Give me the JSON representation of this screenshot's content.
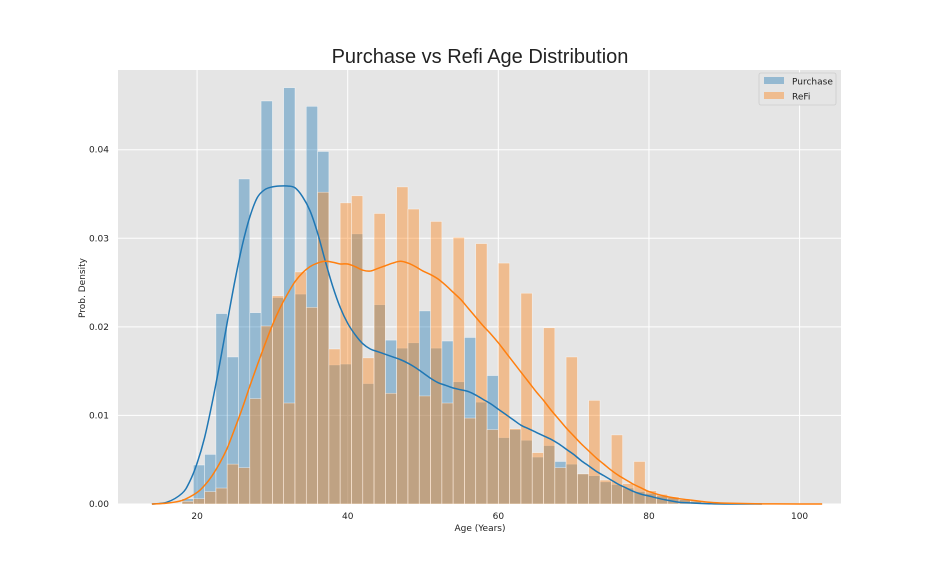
{
  "chart_data": {
    "type": "bar",
    "title": "Purchase vs Refi Age Distribution",
    "xlabel": "Age (Years)",
    "ylabel": "Prob. Density",
    "xlim": [
      9.5,
      105.5
    ],
    "ylim": [
      0,
      0.049
    ],
    "xticks": [
      20,
      40,
      60,
      80,
      100
    ],
    "yticks": [
      0.0,
      0.01,
      0.02,
      0.03,
      0.04
    ],
    "ytick_labels": [
      "0.00",
      "0.01",
      "0.02",
      "0.03",
      "0.04"
    ],
    "grid": true,
    "legend_position": "top-right",
    "bin_edges": [
      18,
      19.5,
      21,
      22.5,
      24,
      25.5,
      27,
      28.5,
      30,
      31.5,
      33,
      34.5,
      36,
      37.5,
      39,
      40.5,
      42,
      43.5,
      45,
      46.5,
      48,
      49.5,
      51,
      52.5,
      54,
      55.5,
      57,
      58.5,
      60,
      61.5,
      63,
      64.5,
      66,
      67.5,
      69,
      70.5,
      72,
      73.5,
      75,
      76.5,
      78,
      79.5,
      81,
      82.5,
      84,
      85.5,
      87
    ],
    "series": [
      {
        "name": "Purchase",
        "color": "#1f77b4",
        "hist": [
          0.0006,
          0.0044,
          0.0056,
          0.0215,
          0.0166,
          0.0367,
          0.0216,
          0.0455,
          0.0233,
          0.047,
          0.0237,
          0.0449,
          0.0398,
          0.0157,
          0.0158,
          0.0305,
          0.0136,
          0.0225,
          0.0185,
          0.0176,
          0.0182,
          0.0218,
          0.0176,
          0.0184,
          0.0138,
          0.0188,
          0.0115,
          0.0145,
          0.0075,
          0.0084,
          0.0072,
          0.0053,
          0.0066,
          0.0048,
          0.0045,
          0.0034,
          0.0032,
          0.0025,
          0.0022,
          0.0018,
          0.0014,
          0.0012,
          0.0009,
          0.0007,
          0.0005,
          0.0004
        ],
        "kde_x": [
          14,
          16,
          18,
          19,
          20,
          21,
          22,
          23,
          24,
          25,
          26,
          27,
          28,
          29,
          30,
          31,
          32,
          33,
          34,
          35,
          36,
          37,
          38,
          39,
          40,
          41,
          42,
          43,
          44,
          45,
          46,
          47,
          48,
          49,
          50,
          51,
          52,
          53,
          54,
          55,
          56,
          57,
          58,
          59,
          60,
          61,
          62,
          63,
          64,
          65,
          66,
          67,
          68,
          69,
          70,
          71,
          72,
          73,
          74,
          75,
          76,
          77,
          78,
          79,
          80,
          82,
          84,
          86,
          88,
          90,
          95
        ],
        "kde_y": [
          0.0,
          0.0002,
          0.0012,
          0.0025,
          0.0046,
          0.0075,
          0.0114,
          0.0158,
          0.0205,
          0.0251,
          0.0292,
          0.0324,
          0.0346,
          0.0355,
          0.0358,
          0.0359,
          0.0359,
          0.0357,
          0.0347,
          0.0331,
          0.0306,
          0.0275,
          0.0246,
          0.0222,
          0.0204,
          0.0191,
          0.0181,
          0.0175,
          0.0172,
          0.0169,
          0.0166,
          0.0163,
          0.0159,
          0.0154,
          0.0148,
          0.0142,
          0.0137,
          0.0134,
          0.0131,
          0.0129,
          0.0127,
          0.0123,
          0.0118,
          0.0113,
          0.0107,
          0.0101,
          0.0095,
          0.0089,
          0.0085,
          0.0081,
          0.0077,
          0.0073,
          0.0068,
          0.0062,
          0.0056,
          0.0049,
          0.0043,
          0.0037,
          0.0032,
          0.0027,
          0.0022,
          0.0018,
          0.0014,
          0.0011,
          0.0009,
          0.0005,
          0.0002,
          0.0001,
          3e-05,
          0.0,
          0.0
        ]
      },
      {
        "name": "ReFi",
        "color": "#ff7f0e",
        "hist": [
          0.0003,
          0.0006,
          0.0014,
          0.0018,
          0.0045,
          0.0041,
          0.0119,
          0.0201,
          0.0235,
          0.0114,
          0.0262,
          0.0222,
          0.0352,
          0.0175,
          0.034,
          0.0348,
          0.0165,
          0.0328,
          0.0125,
          0.0358,
          0.0333,
          0.0122,
          0.0319,
          0.0114,
          0.0301,
          0.0097,
          0.0294,
          0.0084,
          0.0272,
          0.0085,
          0.0238,
          0.0058,
          0.0199,
          0.0041,
          0.0166,
          0.0034,
          0.0117,
          0.0027,
          0.0078,
          0.0023,
          0.0048,
          0.0015,
          0.0011,
          0.0008,
          0.0005,
          0.0003
        ],
        "kde_x": [
          14,
          16,
          18,
          20,
          21,
          22,
          23,
          24,
          25,
          26,
          27,
          28,
          29,
          30,
          31,
          32,
          33,
          34,
          35,
          36,
          37,
          38,
          39,
          40,
          41,
          42,
          43,
          44,
          45,
          46,
          47,
          48,
          49,
          50,
          51,
          52,
          53,
          54,
          55,
          56,
          57,
          58,
          59,
          60,
          61,
          62,
          63,
          64,
          65,
          66,
          67,
          68,
          69,
          70,
          71,
          72,
          73,
          74,
          75,
          76,
          77,
          78,
          79,
          80,
          82,
          84,
          86,
          88,
          90,
          95,
          100,
          103
        ],
        "kde_y": [
          0.0,
          0.0001,
          0.0004,
          0.0013,
          0.0021,
          0.0032,
          0.0046,
          0.0063,
          0.0085,
          0.0108,
          0.0133,
          0.0157,
          0.018,
          0.0202,
          0.0221,
          0.0237,
          0.0251,
          0.0261,
          0.0268,
          0.0272,
          0.0274,
          0.0273,
          0.0271,
          0.0271,
          0.0268,
          0.0264,
          0.0263,
          0.0266,
          0.0269,
          0.0272,
          0.0274,
          0.0272,
          0.0268,
          0.0263,
          0.0259,
          0.0254,
          0.0247,
          0.0239,
          0.0231,
          0.0221,
          0.0211,
          0.0201,
          0.0192,
          0.0182,
          0.0171,
          0.016,
          0.0149,
          0.0138,
          0.0127,
          0.0117,
          0.0106,
          0.0096,
          0.0086,
          0.0077,
          0.0068,
          0.006,
          0.0052,
          0.0045,
          0.0038,
          0.0032,
          0.0027,
          0.0022,
          0.0018,
          0.0014,
          0.0009,
          0.0006,
          0.0004,
          0.0002,
          0.0001,
          2e-05,
          0.0,
          0.0
        ]
      }
    ],
    "colors": {
      "plot_background": "#e5e5e5",
      "grid": "#ffffff",
      "purchase_fill": "rgba(31,119,180,0.4)",
      "refi_fill": "rgba(255,127,14,0.4)"
    }
  }
}
